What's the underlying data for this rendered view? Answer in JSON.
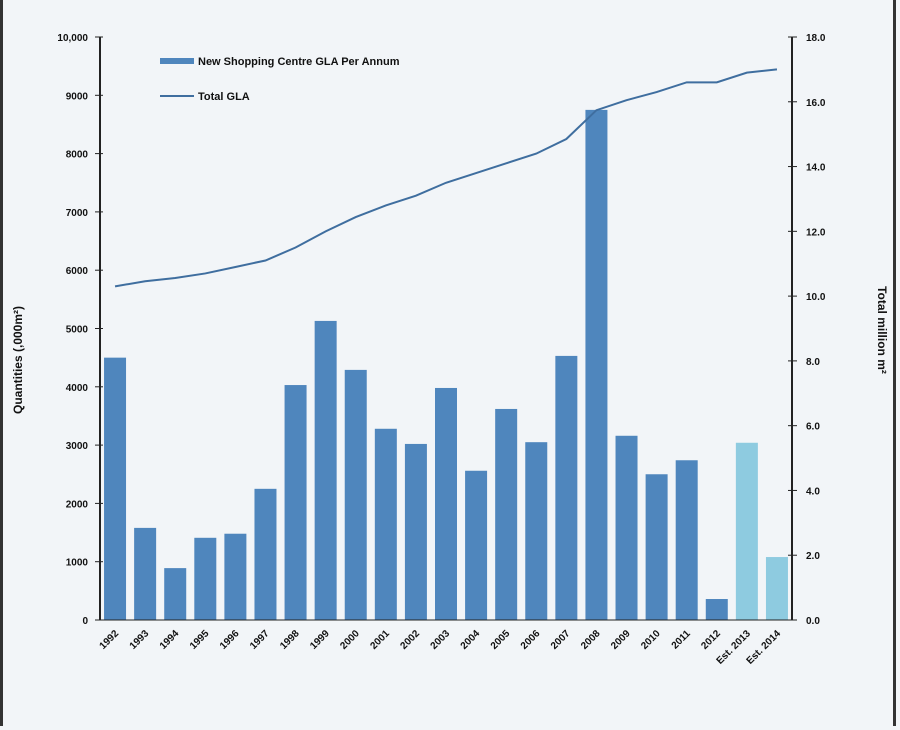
{
  "chart_data": {
    "type": "bar+line",
    "categories": [
      "1992",
      "1993",
      "1994",
      "1995",
      "1996",
      "1997",
      "1998",
      "1999",
      "2000",
      "2001",
      "2002",
      "2003",
      "2004",
      "2005",
      "2006",
      "2007",
      "2008",
      "2009",
      "2010",
      "2011",
      "2012",
      "Est. 2013",
      "Est. 2014"
    ],
    "series": [
      {
        "name": "New Shopping Centre GLA Per Annum",
        "type": "bar",
        "axis": "left",
        "values": [
          4500,
          1580,
          890,
          1410,
          1480,
          2250,
          4030,
          5130,
          4290,
          3280,
          3020,
          3980,
          2560,
          3620,
          3050,
          4530,
          8750,
          3160,
          2500,
          2740,
          360,
          3040,
          1080
        ],
        "estimated": [
          false,
          false,
          false,
          false,
          false,
          false,
          false,
          false,
          false,
          false,
          false,
          false,
          false,
          false,
          false,
          false,
          false,
          false,
          false,
          false,
          false,
          true,
          true
        ]
      },
      {
        "name": "Total GLA",
        "type": "line",
        "axis": "right",
        "values": [
          10.3,
          10.46,
          10.56,
          10.7,
          10.9,
          11.1,
          11.5,
          12.0,
          12.44,
          12.8,
          13.1,
          13.5,
          13.8,
          14.1,
          14.4,
          14.85,
          15.74,
          16.05,
          16.3,
          16.6,
          16.6,
          16.9,
          17.0
        ]
      }
    ],
    "ylabel": "Quantities (,000m²)",
    "ylabel_right": "Total million m²",
    "ylim": [
      0,
      10000
    ],
    "ylim_right": [
      0,
      18
    ],
    "yticks": [
      "0",
      "1000",
      "2000",
      "3000",
      "4000",
      "5000",
      "6000",
      "7000",
      "8000",
      "9000",
      "10,000"
    ],
    "yticks_values": [
      0,
      1000,
      2000,
      3000,
      4000,
      5000,
      6000,
      7000,
      8000,
      9000,
      10000
    ],
    "yticks_right": [
      "0.0",
      "2.0",
      "4.0",
      "6.0",
      "8.0",
      "10.0",
      "12.0",
      "14.0",
      "16.0",
      "18.0"
    ],
    "yticks_right_values": [
      0,
      2,
      4,
      6,
      8,
      10,
      12,
      14,
      16,
      18
    ],
    "legend_position": "top-left",
    "grid": false,
    "colors": {
      "bar": "#4f86bd",
      "bar_estimated": "#8ecbe0",
      "line": "#3f6e9f",
      "axis": "#222222"
    }
  }
}
